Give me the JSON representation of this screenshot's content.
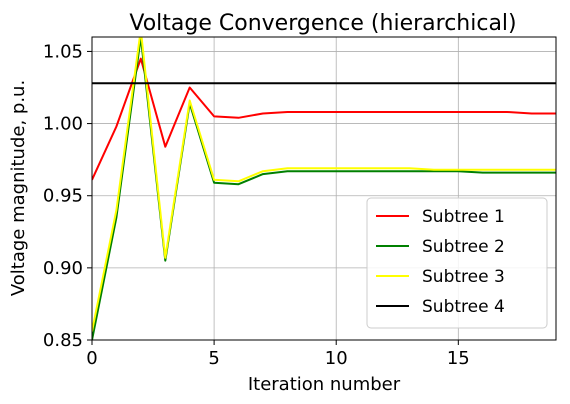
{
  "chart_data": {
    "type": "line",
    "title": "Voltage Convergence (hierarchical)",
    "xlabel": "Iteration number",
    "ylabel": "Voltage magnitude, p.u.",
    "xlim": [
      0,
      19
    ],
    "ylim": [
      0.85,
      1.06
    ],
    "xticks": [
      0,
      5,
      10,
      15
    ],
    "xtick_labels": [
      "0",
      "5",
      "10",
      "15"
    ],
    "yticks": [
      0.85,
      0.9,
      0.95,
      1.0,
      1.05
    ],
    "ytick_labels": [
      "0.85",
      "0.90",
      "0.95",
      "1.00",
      "1.05"
    ],
    "grid": true,
    "legend_position": "lower-right",
    "x": [
      0,
      1,
      2,
      3,
      4,
      5,
      6,
      7,
      8,
      9,
      10,
      11,
      12,
      13,
      14,
      15,
      16,
      17,
      18,
      19
    ],
    "series": [
      {
        "name": "Subtree 1",
        "color": "#ff0000",
        "values": [
          0.961,
          0.998,
          1.045,
          0.984,
          1.025,
          1.005,
          1.004,
          1.007,
          1.008,
          1.008,
          1.008,
          1.008,
          1.008,
          1.008,
          1.008,
          1.008,
          1.008,
          1.008,
          1.007,
          1.007
        ]
      },
      {
        "name": "Subtree 2",
        "color": "#008000",
        "values": [
          0.85,
          0.935,
          1.06,
          0.905,
          1.014,
          0.959,
          0.958,
          0.965,
          0.967,
          0.967,
          0.967,
          0.967,
          0.967,
          0.967,
          0.967,
          0.967,
          0.966,
          0.966,
          0.966,
          0.966
        ]
      },
      {
        "name": "Subtree 3",
        "color": "#ffff00",
        "values": [
          0.856,
          0.94,
          1.065,
          0.907,
          1.016,
          0.961,
          0.96,
          0.967,
          0.969,
          0.969,
          0.969,
          0.969,
          0.969,
          0.969,
          0.968,
          0.968,
          0.968,
          0.968,
          0.968,
          0.968
        ]
      },
      {
        "name": "Subtree 4",
        "color": "#000000",
        "values": [
          1.028,
          1.028,
          1.028,
          1.028,
          1.028,
          1.028,
          1.028,
          1.028,
          1.028,
          1.028,
          1.028,
          1.028,
          1.028,
          1.028,
          1.028,
          1.028,
          1.028,
          1.028,
          1.028,
          1.028
        ]
      }
    ]
  }
}
